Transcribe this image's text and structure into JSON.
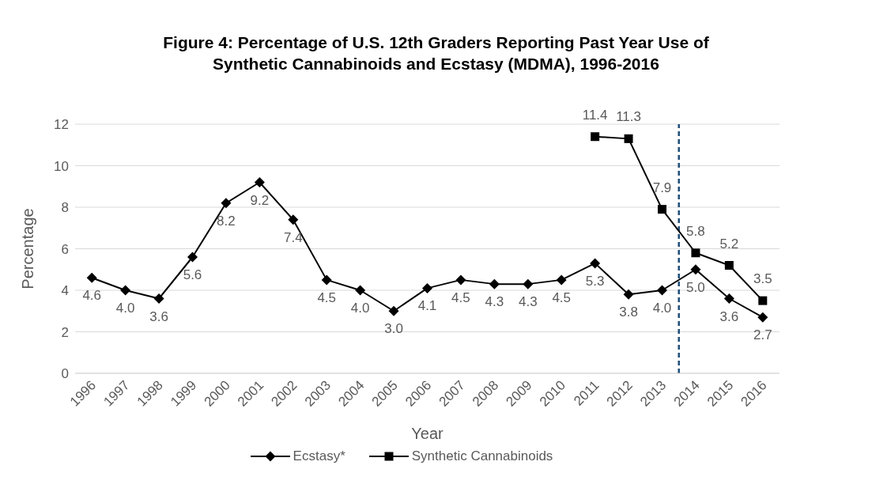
{
  "chart_data": {
    "type": "line",
    "title": "Figure 4: Percentage of U.S. 12th Graders Reporting Past Year Use of Synthetic Cannabinoids and Ecstasy (MDMA), 1996-2016",
    "xlabel": "Year",
    "ylabel": "Percentage",
    "x": [
      1996,
      1997,
      1998,
      1999,
      2000,
      2001,
      2002,
      2003,
      2004,
      2005,
      2006,
      2007,
      2008,
      2009,
      2010,
      2011,
      2012,
      2013,
      2014,
      2015,
      2016
    ],
    "xlim": [
      1995.5,
      2016.5
    ],
    "xticks": [
      1996,
      1997,
      1998,
      1999,
      2000,
      2001,
      2002,
      2003,
      2004,
      2005,
      2006,
      2007,
      2008,
      2009,
      2010,
      2011,
      2012,
      2013,
      2014,
      2015,
      2016
    ],
    "ylim": [
      0,
      12
    ],
    "yticks": [
      0,
      2,
      4,
      6,
      8,
      10,
      12
    ],
    "grid": "y",
    "legend": "bottom",
    "series": [
      {
        "name": "Ecstasy*",
        "color": "#000000",
        "marker": "diamond",
        "values": [
          4.6,
          4.0,
          3.6,
          5.6,
          8.2,
          9.2,
          7.4,
          4.5,
          4.0,
          3.0,
          4.1,
          4.5,
          4.3,
          4.3,
          4.5,
          5.3,
          3.8,
          4.0,
          5.0,
          3.6,
          2.7
        ],
        "value_labels": [
          "4.6",
          "4.0",
          "3.6",
          "5.6",
          "8.2",
          "9.2",
          "7.4",
          "4.5",
          "4.0",
          "3.0",
          "4.1",
          "4.5",
          "4.3",
          "4.3",
          "4.5",
          "5.3",
          "3.8",
          "4.0",
          "5.0",
          "3.6",
          "2.7"
        ]
      },
      {
        "name": "Synthetic Cannabinoids",
        "color": "#000000",
        "marker": "square",
        "values": [
          null,
          null,
          null,
          null,
          null,
          null,
          null,
          null,
          null,
          null,
          null,
          null,
          null,
          null,
          null,
          11.4,
          11.3,
          7.9,
          5.8,
          5.2,
          3.5
        ],
        "value_labels": [
          null,
          null,
          null,
          null,
          null,
          null,
          null,
          null,
          null,
          null,
          null,
          null,
          null,
          null,
          null,
          "11.4",
          "11.3",
          "7.9",
          "5.8",
          "5.2",
          "3.5"
        ]
      }
    ],
    "ref_lines": [
      {
        "axis": "x",
        "value": 2013.5,
        "color": "#1f4e79",
        "line_style": "dashed"
      }
    ]
  }
}
